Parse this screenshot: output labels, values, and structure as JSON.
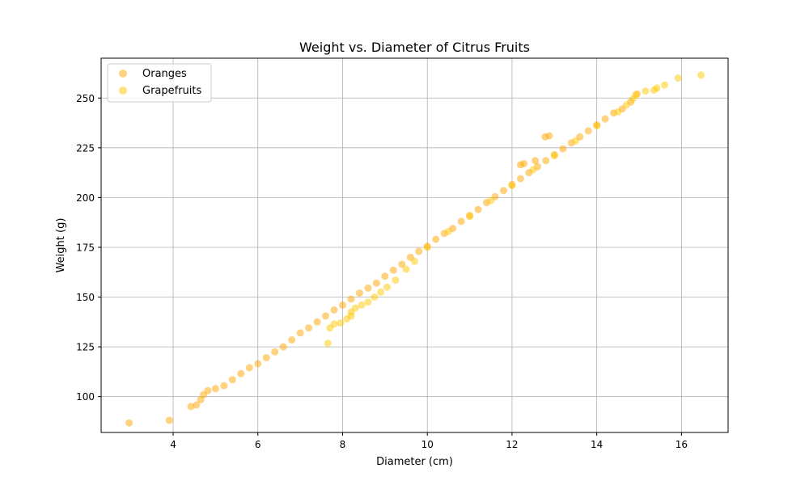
{
  "chart_data": {
    "type": "scatter",
    "title": "Weight vs. Diameter of Citrus Fruits",
    "xlabel": "Diameter (cm)",
    "ylabel": "Weight (g)",
    "xlim": [
      2.3,
      17.1
    ],
    "ylim": [
      82,
      270
    ],
    "xticks": [
      4,
      6,
      8,
      10,
      12,
      14,
      16
    ],
    "yticks": [
      100,
      125,
      150,
      175,
      200,
      225,
      250
    ],
    "grid": true,
    "legend_position": "top-left",
    "series": [
      {
        "name": "Oranges",
        "color": "#ffa500",
        "alpha": 0.5,
        "points": [
          [
            2.96,
            86.8
          ],
          [
            3.91,
            88.1
          ],
          [
            4.42,
            95.0
          ],
          [
            4.55,
            95.8
          ],
          [
            4.65,
            98.5
          ],
          [
            4.72,
            101.0
          ],
          [
            4.82,
            103.0
          ],
          [
            5.0,
            104.0
          ],
          [
            5.2,
            105.5
          ],
          [
            5.4,
            108.5
          ],
          [
            5.6,
            111.5
          ],
          [
            5.8,
            114.5
          ],
          [
            6.0,
            116.5
          ],
          [
            6.2,
            119.5
          ],
          [
            6.4,
            122.5
          ],
          [
            6.6,
            125.0
          ],
          [
            6.8,
            128.5
          ],
          [
            7.0,
            132.0
          ],
          [
            7.2,
            134.5
          ],
          [
            7.4,
            137.5
          ],
          [
            7.6,
            140.5
          ],
          [
            7.8,
            143.5
          ],
          [
            8.0,
            146.0
          ],
          [
            8.2,
            149.0
          ],
          [
            8.4,
            152.0
          ],
          [
            8.6,
            154.5
          ],
          [
            8.8,
            157.0
          ],
          [
            9.0,
            160.5
          ],
          [
            9.2,
            163.5
          ],
          [
            9.4,
            166.5
          ],
          [
            9.6,
            170.0
          ],
          [
            9.8,
            173.0
          ],
          [
            10.0,
            175.5
          ],
          [
            10.2,
            179.0
          ],
          [
            10.4,
            182.0
          ],
          [
            10.6,
            184.5
          ],
          [
            10.8,
            188.0
          ],
          [
            11.0,
            191.0
          ],
          [
            11.2,
            194.0
          ],
          [
            11.4,
            197.5
          ],
          [
            11.6,
            200.5
          ],
          [
            11.8,
            203.5
          ],
          [
            12.0,
            206.5
          ],
          [
            12.2,
            209.5
          ],
          [
            12.4,
            212.5
          ],
          [
            12.6,
            215.5
          ],
          [
            12.8,
            218.5
          ],
          [
            13.0,
            221.5
          ],
          [
            13.2,
            224.5
          ],
          [
            13.4,
            227.5
          ],
          [
            13.6,
            230.5
          ],
          [
            13.8,
            233.5
          ],
          [
            14.0,
            236.5
          ],
          [
            14.2,
            239.5
          ],
          [
            14.4,
            242.5
          ],
          [
            14.6,
            244.5
          ],
          [
            14.8,
            248.0
          ],
          [
            14.95,
            252.0
          ],
          [
            12.2,
            216.5
          ],
          [
            12.28,
            217.0
          ],
          [
            12.55,
            218.5
          ],
          [
            12.78,
            230.5
          ],
          [
            12.88,
            231.0
          ]
        ]
      },
      {
        "name": "Grapefruits",
        "color": "#ffc700",
        "alpha": 0.5,
        "points": [
          [
            7.65,
            126.8
          ],
          [
            7.7,
            134.5
          ],
          [
            7.8,
            136.5
          ],
          [
            7.95,
            137.0
          ],
          [
            8.1,
            139.0
          ],
          [
            8.2,
            140.5
          ],
          [
            8.2,
            142.5
          ],
          [
            8.3,
            144.5
          ],
          [
            8.45,
            146.0
          ],
          [
            8.6,
            147.5
          ],
          [
            8.75,
            150.0
          ],
          [
            8.9,
            152.5
          ],
          [
            9.05,
            155.0
          ],
          [
            9.25,
            158.5
          ],
          [
            9.5,
            164.0
          ],
          [
            9.7,
            168.0
          ],
          [
            10.0,
            175.0
          ],
          [
            10.5,
            183.0
          ],
          [
            11.0,
            190.5
          ],
          [
            11.5,
            198.5
          ],
          [
            12.0,
            206.0
          ],
          [
            12.5,
            214.0
          ],
          [
            13.0,
            221.0
          ],
          [
            13.5,
            228.5
          ],
          [
            14.0,
            236.0
          ],
          [
            14.5,
            243.0
          ],
          [
            14.7,
            246.5
          ],
          [
            14.85,
            249.5
          ],
          [
            14.92,
            251.5
          ],
          [
            15.15,
            253.5
          ],
          [
            15.35,
            254.0
          ],
          [
            15.42,
            255.0
          ],
          [
            15.6,
            256.5
          ],
          [
            15.92,
            260.0
          ],
          [
            16.46,
            261.5
          ]
        ]
      }
    ]
  }
}
